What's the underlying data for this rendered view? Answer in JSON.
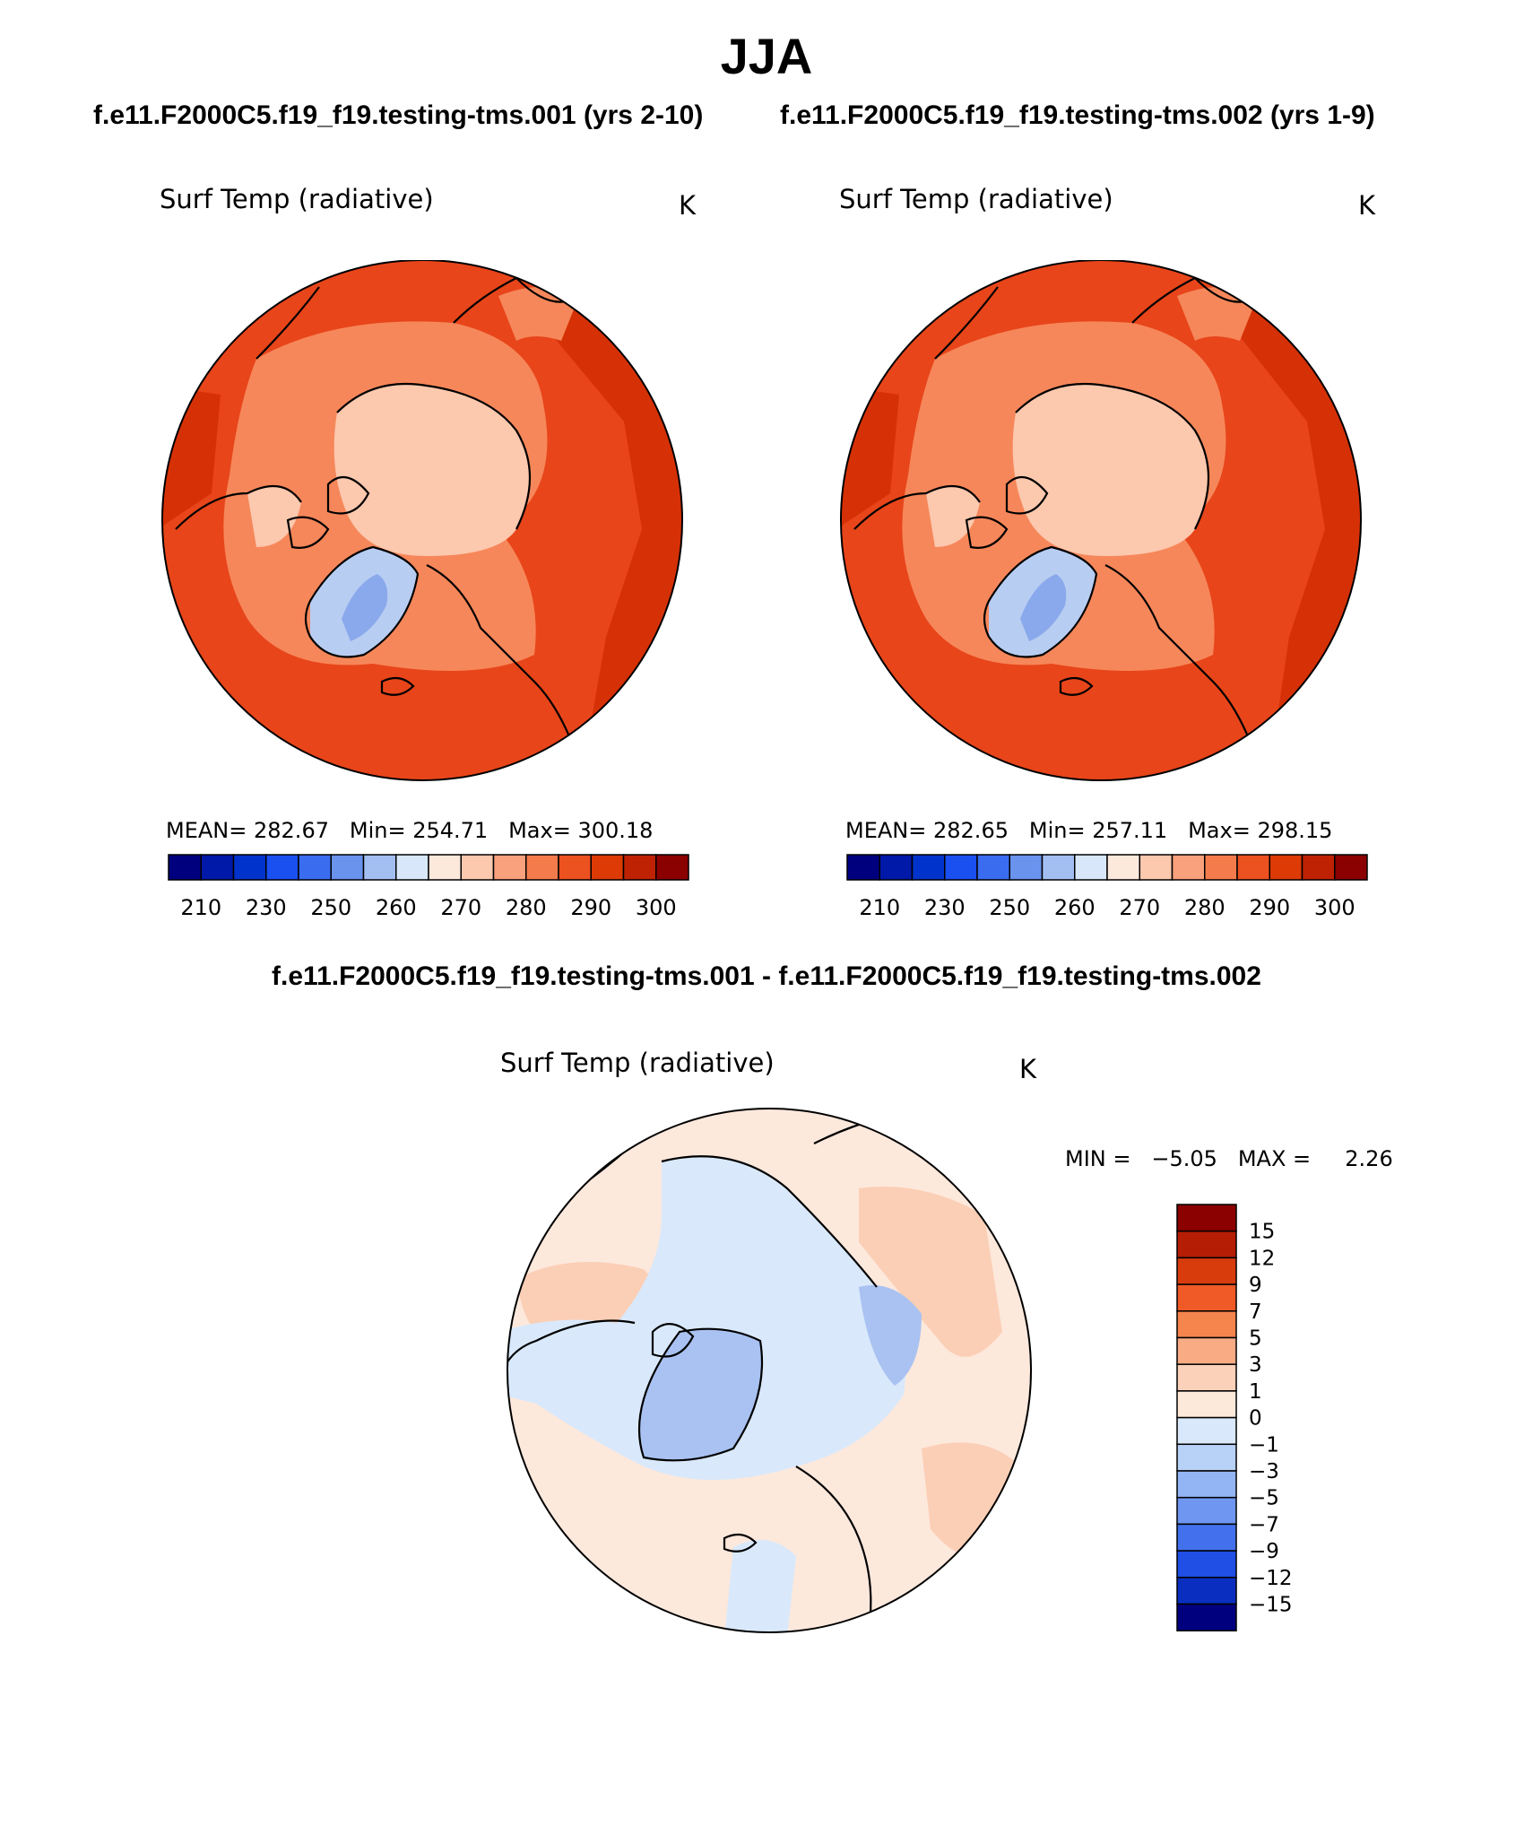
{
  "title": "JJA",
  "panels": [
    {
      "run_title": "f.e11.F2000C5.f19_f19.testing-tms.001 (yrs 2-10)",
      "variable": "Surf Temp (radiative)",
      "units": "K",
      "stats": {
        "mean_label": "MEAN=",
        "mean": "282.67",
        "min_label": "Min=",
        "min": "254.71",
        "max_label": "Max=",
        "max": "300.18"
      }
    },
    {
      "run_title": "f.e11.F2000C5.f19_f19.testing-tms.002 (yrs 1-9)",
      "variable": "Surf Temp (radiative)",
      "units": "K",
      "stats": {
        "mean_label": "MEAN=",
        "mean": "282.65",
        "min_label": "Min=",
        "min": "257.11",
        "max_label": "Max=",
        "max": "298.15"
      }
    }
  ],
  "abs_colorbar": {
    "colors": [
      "#00007f",
      "#0019a8",
      "#0033cc",
      "#1a4ff0",
      "#3a6cf0",
      "#6a93ee",
      "#a3bff2",
      "#d8e8fa",
      "#fde8dc",
      "#fcc8ae",
      "#f9a07c",
      "#f47b4c",
      "#ec5120",
      "#dd3a05",
      "#bf2203",
      "#8b0000"
    ],
    "labels": [
      "210",
      "230",
      "250",
      "260",
      "270",
      "280",
      "290",
      "300"
    ]
  },
  "difference": {
    "title": "f.e11.F2000C5.f19_f19.testing-tms.001 - f.e11.F2000C5.f19_f19.testing-tms.002",
    "variable": "Surf Temp (radiative)",
    "units": "K",
    "min_label": "MIN =",
    "min": "−5.05",
    "max_label": "MAX =",
    "max": "2.26",
    "colorbar": {
      "colors_top_to_bottom": [
        "#8b0000",
        "#b51d04",
        "#d83c0c",
        "#ef5a26",
        "#f6844d",
        "#f9ab84",
        "#fcd1b9",
        "#fde9da",
        "#d9e9fb",
        "#b8d1f7",
        "#94b5f3",
        "#6f96f0",
        "#4371ee",
        "#1f4fe4",
        "#0a2fc0",
        "#00007f"
      ],
      "labels": [
        "15",
        "12",
        "9",
        "7",
        "5",
        "3",
        "1",
        "0",
        "−1",
        "−3",
        "−5",
        "−7",
        "−9",
        "−12",
        "−15"
      ]
    }
  },
  "colors": {
    "ocean_warm": "#e8451a",
    "ocean_hot": "#d63106",
    "land_mid": "#f6875a",
    "arctic": "#fcc8ae",
    "greenland_cold": "#b8cdf2",
    "greenland_core": "#8aa9ec",
    "diff_warm": "#fde8dc",
    "diff_warm2": "#fbcfb6",
    "diff_cool": "#d9e9fb",
    "diff_cool2": "#a9c2f1"
  }
}
